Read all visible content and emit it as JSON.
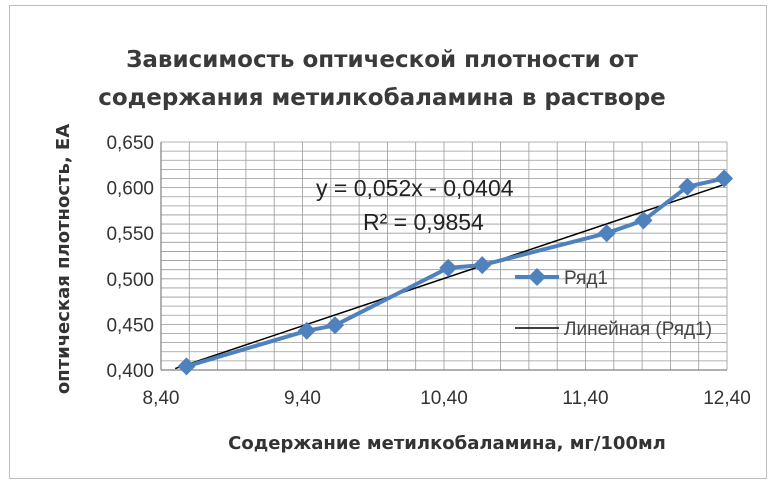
{
  "chart_data": {
    "type": "scatter",
    "title": [
      "Зависимость оптической плотности от",
      "содержания метилкобаламина в растворе"
    ],
    "xlabel": "Содержание метилкобаламина, мг/100мл",
    "ylabel": "оптическая плотность, ЕА",
    "xlim": [
      8.4,
      12.4
    ],
    "ylim": [
      0.4,
      0.65
    ],
    "xticks": [
      "8,40",
      "9,40",
      "10,40",
      "11,40",
      "12,40"
    ],
    "yticks": [
      "0,400",
      "0,450",
      "0,500",
      "0,550",
      "0,600",
      "0,650"
    ],
    "grid": true,
    "legend_position": "right",
    "series": [
      {
        "name": "Ряд1",
        "color": "#4f81bd",
        "marker": "diamond",
        "x": [
          8.58,
          9.43,
          9.63,
          10.43,
          10.67,
          11.55,
          11.81,
          12.12,
          12.38
        ],
        "y": [
          0.404,
          0.443,
          0.449,
          0.512,
          0.515,
          0.55,
          0.564,
          0.601,
          0.61
        ]
      },
      {
        "name": "Линейная (Ряд1)",
        "color": "#000000",
        "type": "trendline",
        "slope": 0.052,
        "intercept": -0.0404,
        "x_range": [
          8.5,
          12.4
        ]
      }
    ],
    "annotations": [
      "y = 0,052x - 0,0404",
      "R² = 0,9854"
    ]
  }
}
